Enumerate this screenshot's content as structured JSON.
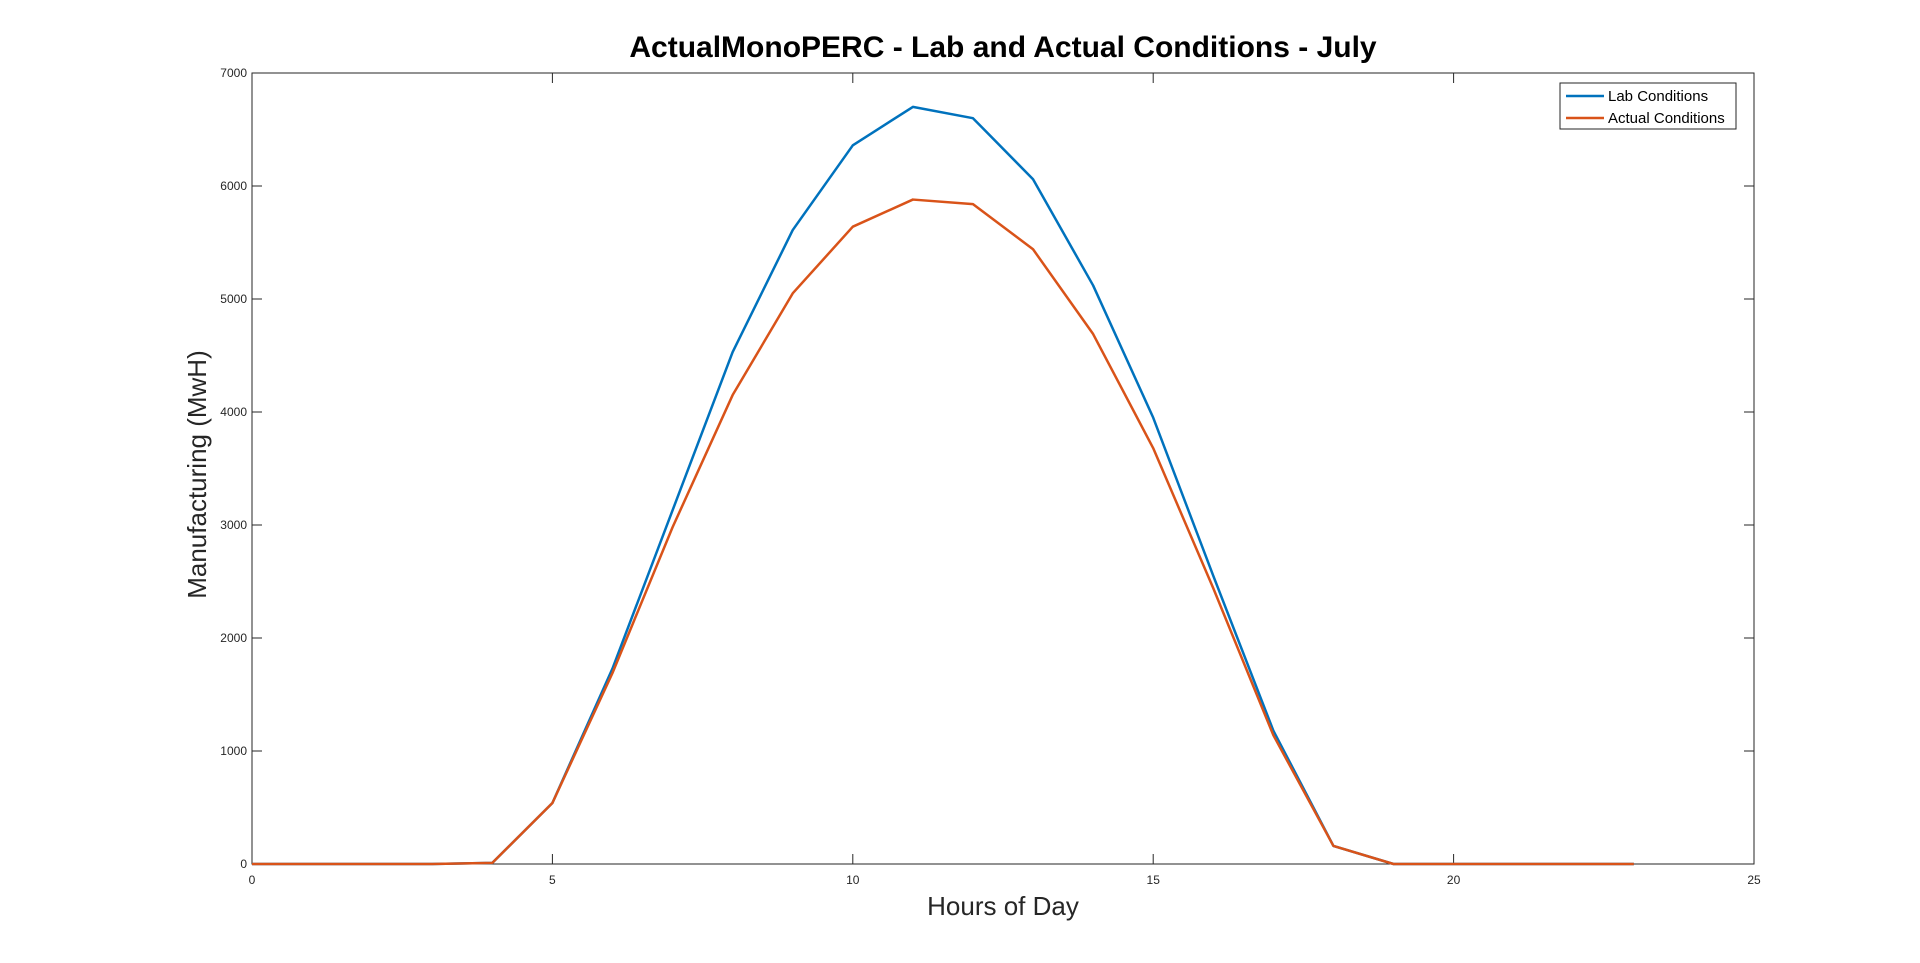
{
  "chart_data": {
    "type": "line",
    "title": "ActualMonoPERC - Lab and Actual Conditions - July",
    "xlabel": "Hours of Day",
    "ylabel": "Manufacturing (MwH)",
    "xlim": [
      0,
      25
    ],
    "ylim": [
      0,
      7000
    ],
    "xticks": [
      0,
      5,
      10,
      15,
      20,
      25
    ],
    "yticks": [
      0,
      1000,
      2000,
      3000,
      4000,
      5000,
      6000,
      7000
    ],
    "grid": false,
    "legend_position": "top-right",
    "x": [
      0,
      1,
      2,
      3,
      4,
      5,
      6,
      7,
      8,
      9,
      10,
      11,
      12,
      13,
      14,
      15,
      16,
      17,
      18,
      19,
      20,
      21,
      22,
      23
    ],
    "series": [
      {
        "name": "Lab Conditions",
        "color": "#0072BD",
        "values": [
          0,
          0,
          0,
          0,
          10,
          540,
          1730,
          3130,
          4530,
          5610,
          6360,
          6700,
          6600,
          6060,
          5120,
          3950,
          2550,
          1180,
          160,
          0,
          0,
          0,
          0,
          0
        ]
      },
      {
        "name": "Actual Conditions",
        "color": "#D95319",
        "values": [
          0,
          0,
          0,
          0,
          10,
          540,
          1690,
          2980,
          4150,
          5050,
          5640,
          5880,
          5840,
          5440,
          4690,
          3680,
          2440,
          1140,
          160,
          0,
          0,
          0,
          0,
          0
        ]
      }
    ]
  }
}
